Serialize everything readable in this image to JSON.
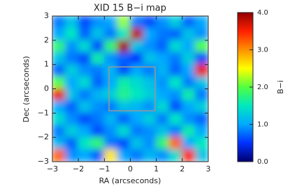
{
  "chart_data": {
    "type": "heatmap",
    "title": "XID 15 B−i map",
    "xlabel": "RA (arcseconds)",
    "ylabel": "Dec (arcseconds)",
    "colorbar_label": "B−i",
    "xlim": [
      -3,
      3
    ],
    "ylim": [
      -3,
      3
    ],
    "zlim": [
      0,
      4
    ],
    "xticks": [
      {
        "value": -3,
        "label": "−3"
      },
      {
        "value": -2,
        "label": "−2"
      },
      {
        "value": -1,
        "label": "−1"
      },
      0,
      1,
      2,
      3
    ],
    "yticks": [
      {
        "value": -3,
        "label": "−3"
      },
      {
        "value": -2,
        "label": "−2"
      },
      {
        "value": -1,
        "label": "−1"
      },
      0,
      1,
      2,
      3
    ],
    "zticks": [
      {
        "value": 0,
        "label": "0.0"
      },
      {
        "value": 1,
        "label": "1.0"
      },
      {
        "value": 2,
        "label": "2.0"
      },
      {
        "value": 3,
        "label": "3.0"
      },
      {
        "value": 4,
        "label": "4.0"
      }
    ],
    "colorscale": [
      "#00006e",
      "#0030ff",
      "#00a8ff",
      "#00e8c0",
      "#50ff40",
      "#ffff00",
      "#ff9000",
      "#ff2000",
      "#900000"
    ],
    "z": [
      [
        0.8,
        1.2,
        0.6,
        0.9,
        1.0,
        2.2,
        0.8,
        0.6,
        0.9,
        1.3,
        0.7,
        1.0
      ],
      [
        1.0,
        1.5,
        0.7,
        1.2,
        0.8,
        1.5,
        3.8,
        1.0,
        0.8,
        0.7,
        1.2,
        0.9
      ],
      [
        1.8,
        0.9,
        1.4,
        0.6,
        1.8,
        3.9,
        1.2,
        0.9,
        0.7,
        1.4,
        1.0,
        2.0
      ],
      [
        1.2,
        0.8,
        0.6,
        1.6,
        0.9,
        0.7,
        0.5,
        1.2,
        1.0,
        0.8,
        1.3,
        0.6
      ],
      [
        0.7,
        1.3,
        0.9,
        0.8,
        1.1,
        0.6,
        1.0,
        0.8,
        1.1,
        0.7,
        1.0,
        3.6
      ],
      [
        2.0,
        1.0,
        1.4,
        0.7,
        1.0,
        1.6,
        1.4,
        1.2,
        0.9,
        1.5,
        0.8,
        1.2
      ],
      [
        3.6,
        1.2,
        0.8,
        1.1,
        1.3,
        1.7,
        1.5,
        1.3,
        1.0,
        0.9,
        1.6,
        0.8
      ],
      [
        1.0,
        0.7,
        1.2,
        0.9,
        0.8,
        1.2,
        1.1,
        0.9,
        1.4,
        0.6,
        1.0,
        1.3
      ],
      [
        1.4,
        0.9,
        0.6,
        0.8,
        1.1,
        0.7,
        1.0,
        1.3,
        0.8,
        1.5,
        0.9,
        0.7
      ],
      [
        0.8,
        1.3,
        1.0,
        0.6,
        0.9,
        1.4,
        0.8,
        0.9,
        1.2,
        0.8,
        1.6,
        1.0
      ],
      [
        1.1,
        0.7,
        1.5,
        1.8,
        0.8,
        0.6,
        1.2,
        0.9,
        1.8,
        3.2,
        1.0,
        1.5
      ],
      [
        3.2,
        0.9,
        1.0,
        0.7,
        2.6,
        1.0,
        0.8,
        1.1,
        0.9,
        1.4,
        3.5,
        1.2
      ]
    ]
  }
}
